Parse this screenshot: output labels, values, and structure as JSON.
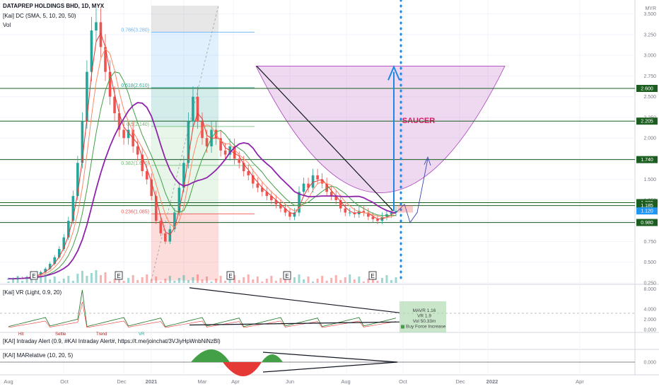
{
  "header": {
    "symbol_line": "DATAPREP HOLDINGS BHD, 1D, MYX",
    "indicator_line": "[Kai] DC (SMA, 5, 10, 20, 50)",
    "vol_label": "Vol"
  },
  "panes": {
    "vr_title": "[Kai] VR (Light, 0.9, 20)",
    "intraday_title": "[KAI] Intraday Alert (0.9, #KAI Intraday Alert#, https://t.me/joinchat/3VJiyHpWnbNiNzBl)",
    "intraday_inputs": [
      "Hit",
      "Settle",
      "Trend",
      "VR"
    ],
    "marelative_title": "[KAI] MARelative (10, 20, 5)"
  },
  "colors": {
    "up": "#26a69a",
    "down": "#ef5350",
    "sma5": "#e53935",
    "sma10": "#ff8a65",
    "sma20": "#43a047",
    "sma50": "#8e24aa",
    "support_lines": "#1b5e20",
    "saucer_fill": "#ce93d8",
    "arrow": "#1e88e5",
    "price_tag": "#1b5e20",
    "current_tag": "#2196f3"
  },
  "chart_data": {
    "type": "candlestick",
    "currency": "MYR",
    "ylim": [
      0.25,
      3.6
    ],
    "y_ticks": [
      "3.500",
      "3.250",
      "3.000",
      "2.750",
      "2.500",
      "2.250",
      "2.000",
      "1.750",
      "1.500",
      "1.250",
      "1.000",
      "0.750",
      "0.500",
      "0.250"
    ],
    "x_ticks": [
      "Aug",
      "Oct",
      "Dec",
      "2021",
      "Mar",
      "Apr",
      "Jun",
      "Aug",
      "Oct",
      "Dec",
      "2022",
      "Apr"
    ],
    "fib_levels": [
      {
        "label": "0.786(3.280)",
        "value": 3.28,
        "color": "#64b5f6"
      },
      {
        "label": "0.618(2.610)",
        "value": 2.61,
        "color": "#26a69a"
      },
      {
        "label": "0.5(2.140)",
        "value": 2.14,
        "color": "#66bb6a"
      },
      {
        "label": "0.382(1.670)",
        "value": 1.67,
        "color": "#66bb6a"
      },
      {
        "label": "0.236(1.085)",
        "value": 1.085,
        "color": "#ef5350"
      }
    ],
    "horizontal_levels": [
      "2.600",
      "2.205",
      "1.740",
      "1.220",
      "1.185",
      "0.980"
    ],
    "current_price": "1.120",
    "annotation": "SAUCER",
    "earnings_marker": "E",
    "earnings_count": 5,
    "closes": [
      0.3,
      0.3,
      0.31,
      0.31,
      0.32,
      0.33,
      0.35,
      0.38,
      0.42,
      0.48,
      0.56,
      0.66,
      0.8,
      1.0,
      1.3,
      1.7,
      2.2,
      2.8,
      3.3,
      3.4,
      3.1,
      2.8,
      2.5,
      2.3,
      2.1,
      2.0,
      2.1,
      1.9,
      1.8,
      1.6,
      1.5,
      1.3,
      1.0,
      0.85,
      0.75,
      0.9,
      1.1,
      1.4,
      1.7,
      2.2,
      2.5,
      2.2,
      2.0,
      1.9,
      2.1,
      2.0,
      1.85,
      1.8,
      1.9,
      1.75,
      1.7,
      1.6,
      1.55,
      1.45,
      1.4,
      1.35,
      1.3,
      1.25,
      1.2,
      1.15,
      1.1,
      1.05,
      1.1,
      1.35,
      1.45,
      1.4,
      1.55,
      1.5,
      1.45,
      1.35,
      1.3,
      1.25,
      1.15,
      1.1,
      1.1,
      1.08,
      1.12,
      1.1,
      1.05,
      1.02,
      1.0,
      1.05,
      1.08,
      1.1,
      1.12
    ],
    "vr_pane": {
      "ylim": [
        0,
        8.6
      ],
      "y_ticks": [
        "8.000",
        "4.000",
        "2.000",
        "0.000"
      ],
      "info_lines": [
        "MAVR 1.16",
        "VR 1.9",
        "Vol 50.33m",
        "Buy Force Increase"
      ]
    },
    "marelative_pane": {
      "y_ticks": [
        "0.000"
      ]
    }
  }
}
